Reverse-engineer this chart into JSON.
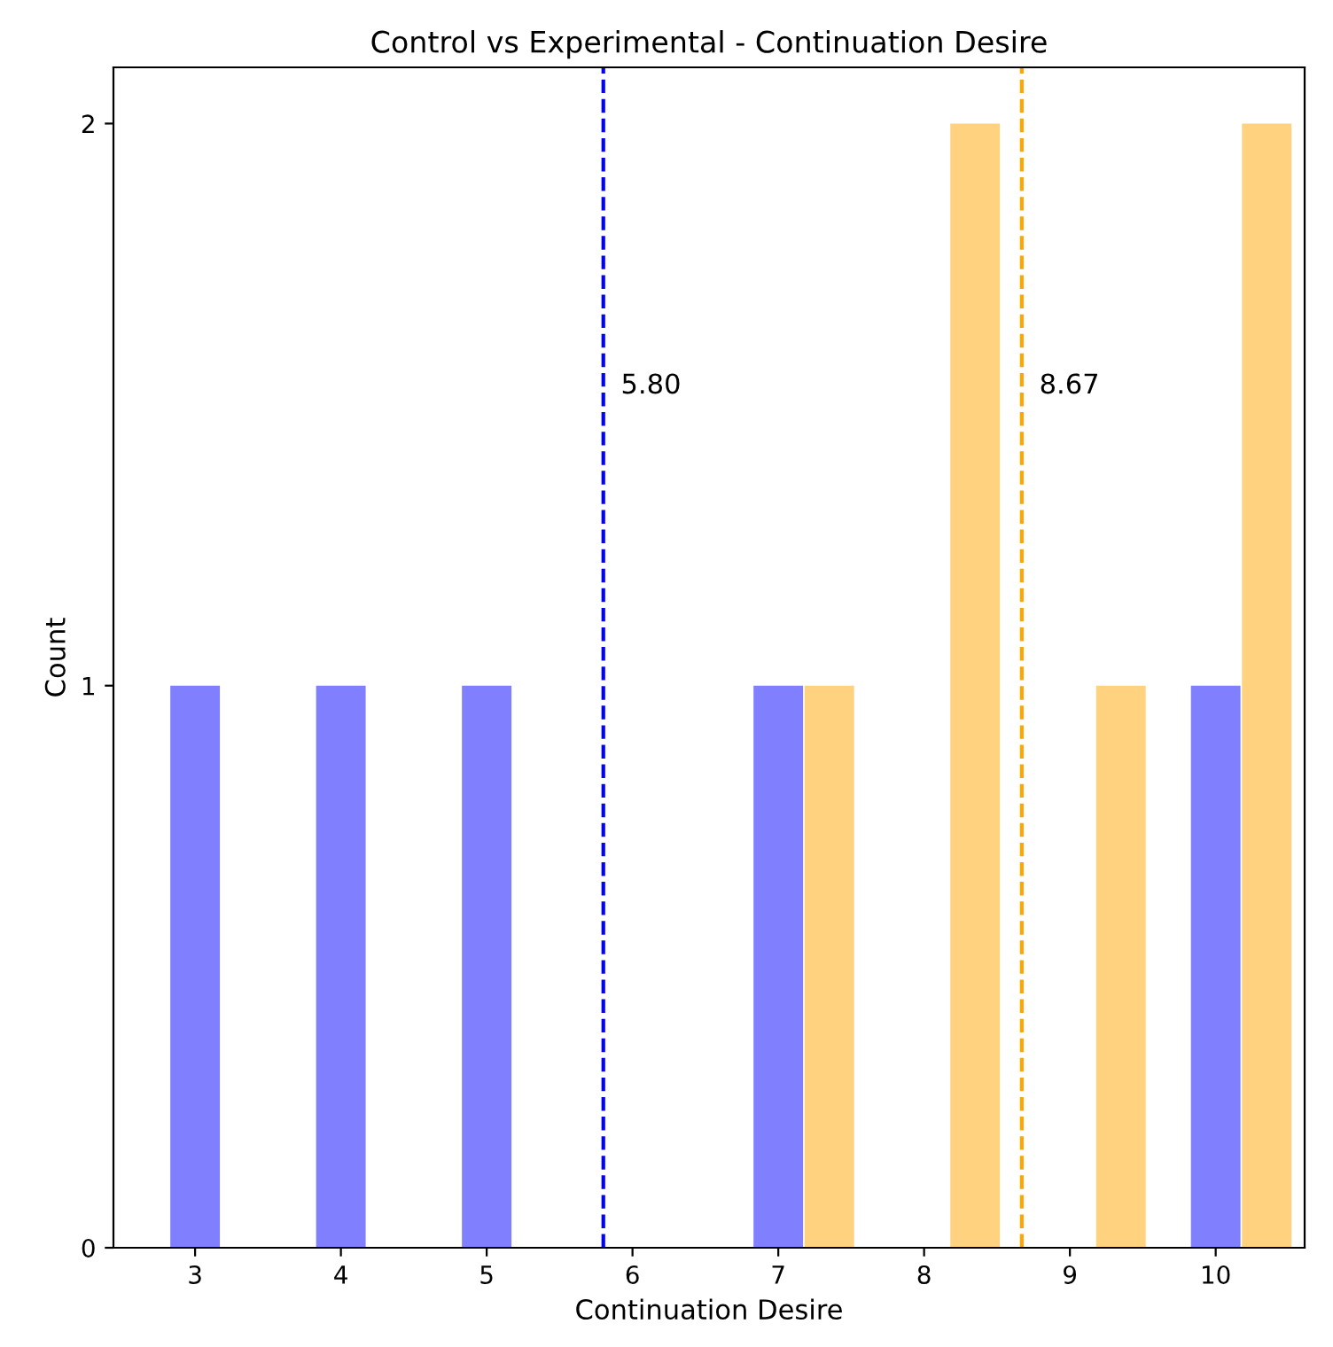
{
  "chart_data": {
    "type": "bar",
    "title": "Control vs Experimental - Continuation Desire",
    "xlabel": "Continuation Desire",
    "ylabel": "Count",
    "series": [
      {
        "x": [
          3,
          4,
          5,
          7,
          10
        ],
        "values": [
          1,
          1,
          1,
          1,
          1
        ],
        "color": "#8080ff"
      },
      {
        "x": [
          7.35,
          8.35,
          9.35,
          10.35
        ],
        "values": [
          1,
          2,
          1,
          2
        ],
        "color": "#ffd280"
      }
    ],
    "xlim": [
      2.44,
      10.61
    ],
    "xticks": [
      3,
      4,
      5,
      6,
      7,
      8,
      9,
      10
    ],
    "ylim": [
      0,
      2.1
    ],
    "yticks": [
      0,
      1,
      2
    ],
    "ref_lines": [
      {
        "axis": "x",
        "value": 5.8,
        "label": "5.80",
        "color": "#0000ff",
        "line_style": "dashed"
      },
      {
        "axis": "x",
        "value": 8.67,
        "label": "8.67",
        "color": "#ffa500",
        "line_style": "dashed"
      }
    ],
    "grid": false,
    "legend": false
  }
}
